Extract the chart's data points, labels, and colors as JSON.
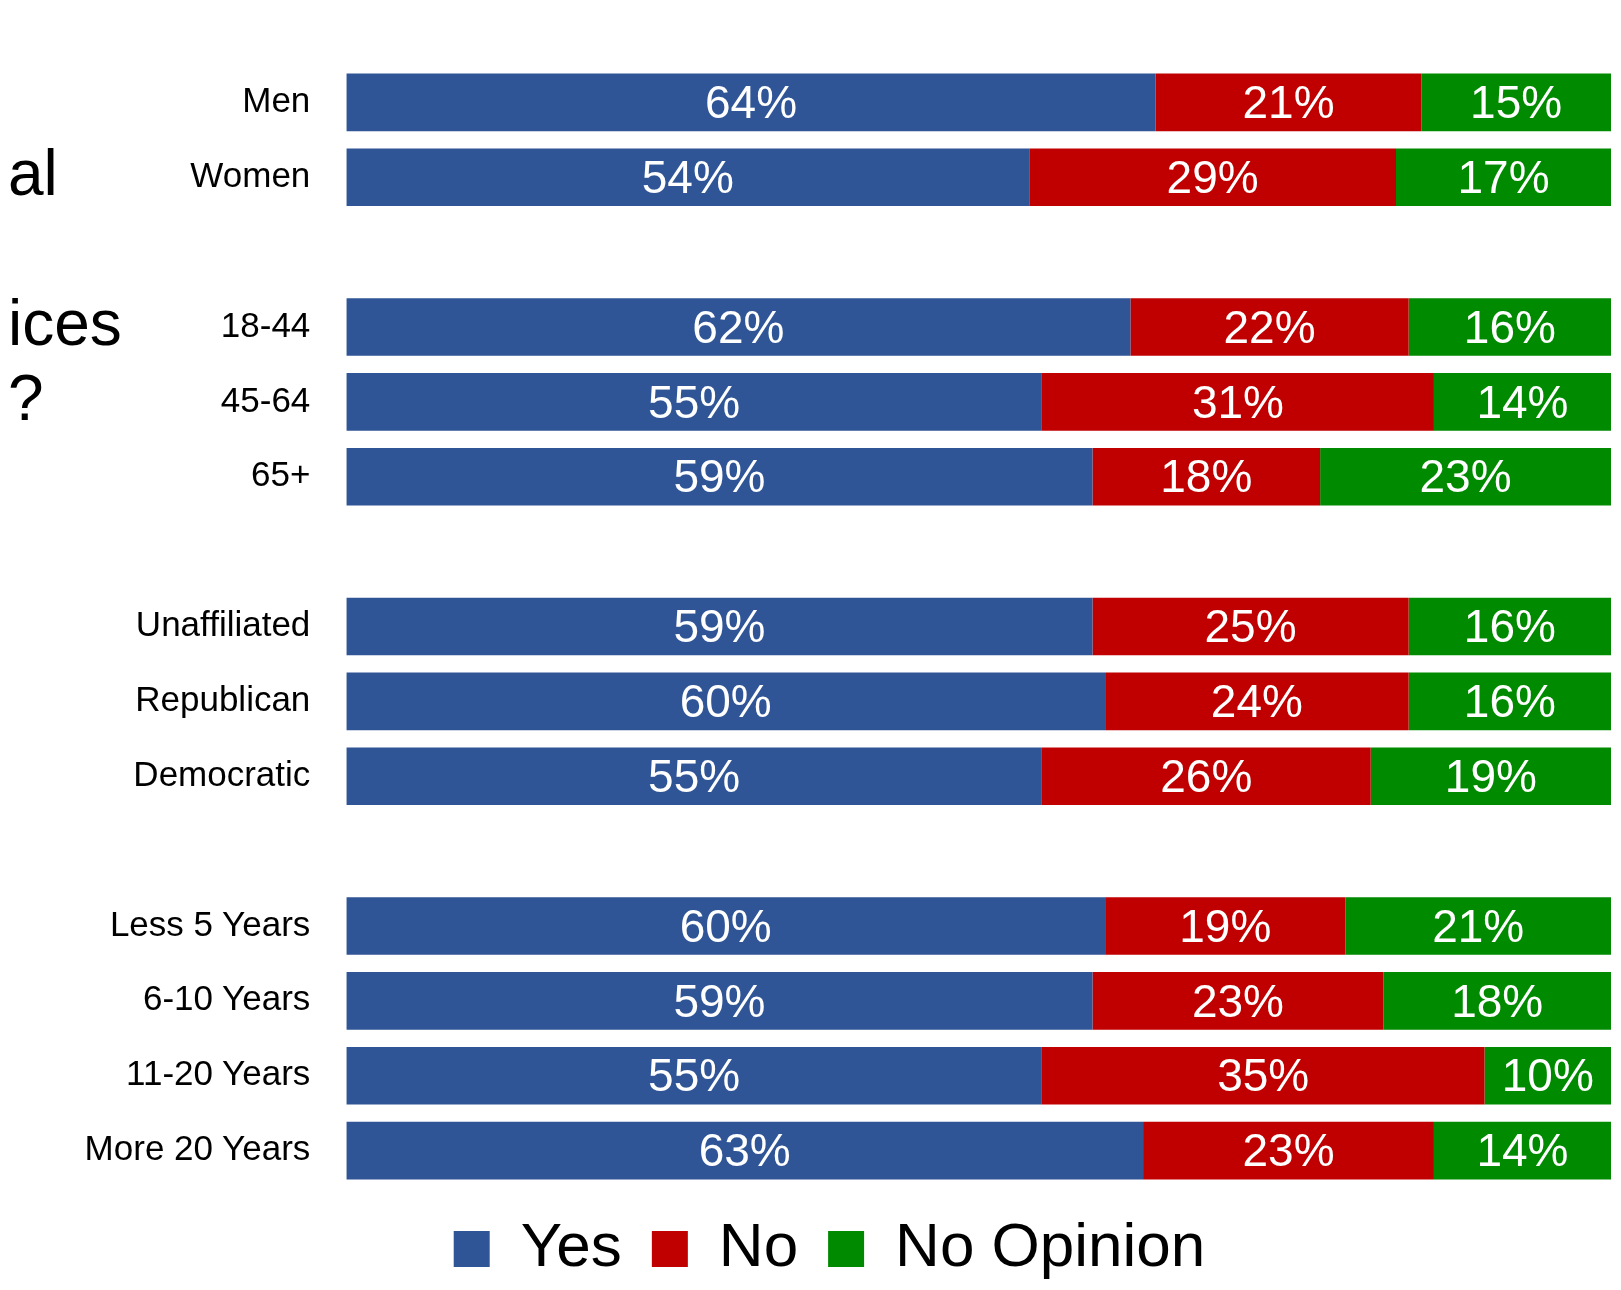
{
  "chart_data": {
    "type": "bar",
    "orientation": "horizontal",
    "stacked": true,
    "categories": [
      "Men",
      "Women",
      null,
      "18-44",
      "45-64",
      "65+",
      null,
      "Unaffiliated",
      "Republican",
      "Democratic",
      null,
      "Less 5 Years",
      "6-10 Years",
      "11-20 Years",
      "More 20 Years"
    ],
    "series": [
      {
        "name": "Yes",
        "color": "#2f5597",
        "values": [
          64,
          54,
          null,
          62,
          55,
          59,
          null,
          59,
          60,
          55,
          null,
          60,
          59,
          55,
          63
        ],
        "value_labels": [
          "64%",
          "54%",
          null,
          "62%",
          "55%",
          "59%",
          null,
          "59%",
          "60%",
          "55%",
          null,
          "60%",
          "59%",
          "55%",
          "63%"
        ]
      },
      {
        "name": "No",
        "color": "#c00000",
        "values": [
          21,
          29,
          null,
          22,
          31,
          18,
          null,
          25,
          24,
          26,
          null,
          19,
          23,
          35,
          23
        ],
        "value_labels": [
          "21%",
          "29%",
          null,
          "22%",
          "31%",
          "18%",
          null,
          "25%",
          "24%",
          "26%",
          null,
          "19%",
          "23%",
          "35%",
          "23%"
        ]
      },
      {
        "name": "No Opinion",
        "color": "#008a00",
        "values": [
          15,
          17,
          null,
          16,
          14,
          23,
          null,
          16,
          16,
          19,
          null,
          21,
          18,
          10,
          14
        ],
        "value_labels": [
          "15%",
          "17%",
          null,
          "16%",
          "14%",
          "23%",
          null,
          "16%",
          "16%",
          "19%",
          null,
          "21%",
          "18%",
          "10%",
          "14%"
        ]
      }
    ],
    "xlim": [
      0,
      100
    ],
    "tick_labels": "y",
    "legend": "bottom",
    "annotations": [
      "al",
      "ices",
      "?"
    ]
  }
}
